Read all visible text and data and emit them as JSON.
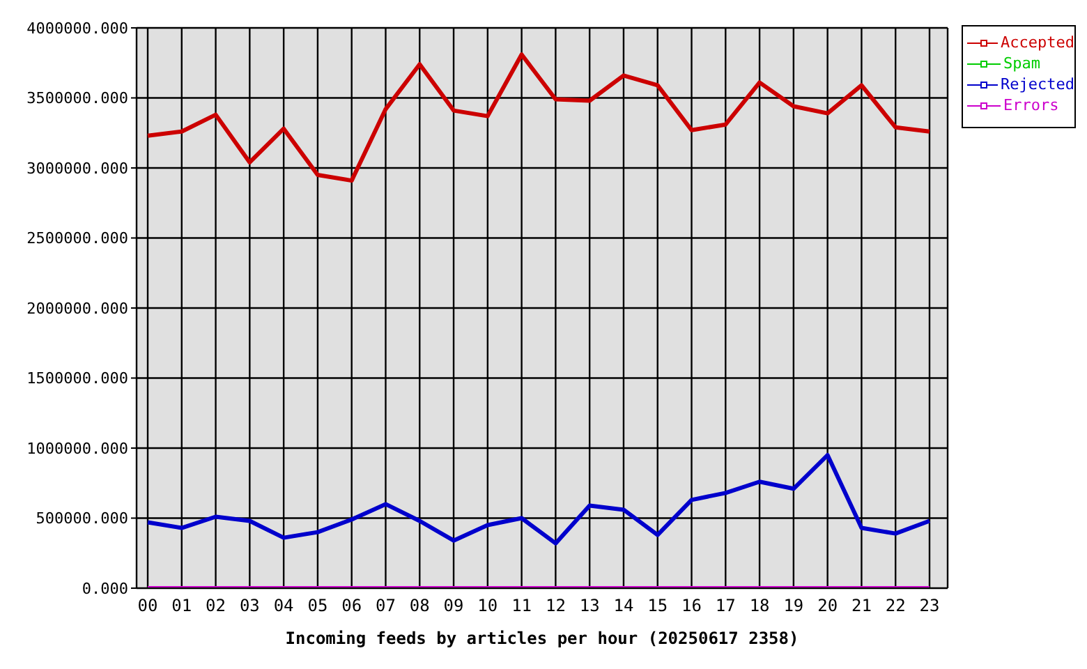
{
  "chart_data": {
    "type": "line",
    "xlabel": "Incoming feeds by articles per hour (20250617 2358)",
    "categories": [
      "00",
      "01",
      "02",
      "03",
      "04",
      "05",
      "06",
      "07",
      "08",
      "09",
      "10",
      "11",
      "12",
      "13",
      "14",
      "15",
      "16",
      "17",
      "18",
      "19",
      "20",
      "21",
      "22",
      "23"
    ],
    "series": [
      {
        "name": "Accepted",
        "color": "#cc0000",
        "values": [
          3230000,
          3260000,
          3380000,
          3040000,
          3280000,
          2950000,
          2910000,
          3420000,
          3740000,
          3410000,
          3370000,
          3810000,
          3490000,
          3480000,
          3660000,
          3590000,
          3270000,
          3310000,
          3610000,
          3440000,
          3390000,
          3590000,
          3290000,
          3260000
        ]
      },
      {
        "name": "Spam",
        "color": "#00cc00",
        "values": [
          null,
          null,
          null,
          null,
          null,
          null,
          null,
          null,
          null,
          null,
          null,
          null,
          null,
          null,
          null,
          null,
          null,
          null,
          null,
          null,
          null,
          null,
          null,
          null
        ]
      },
      {
        "name": "Rejected",
        "color": "#0000cc",
        "values": [
          470000,
          430000,
          510000,
          480000,
          360000,
          400000,
          490000,
          600000,
          480000,
          340000,
          450000,
          500000,
          320000,
          590000,
          560000,
          380000,
          630000,
          680000,
          760000,
          710000,
          950000,
          430000,
          390000,
          480000
        ]
      },
      {
        "name": "Errors",
        "color": "#cc00cc",
        "values": [
          0,
          0,
          0,
          0,
          0,
          0,
          0,
          0,
          0,
          0,
          0,
          0,
          0,
          0,
          0,
          0,
          0,
          0,
          0,
          0,
          0,
          0,
          0,
          0
        ]
      }
    ],
    "ylim": [
      0,
      4000000
    ],
    "yticks": [
      {
        "value": 0,
        "label": "0.000"
      },
      {
        "value": 500000,
        "label": "500000.000"
      },
      {
        "value": 1000000,
        "label": "1000000.000"
      },
      {
        "value": 1500000,
        "label": "1500000.000"
      },
      {
        "value": 2000000,
        "label": "2000000.000"
      },
      {
        "value": 2500000,
        "label": "2500000.000"
      },
      {
        "value": 3000000,
        "label": "3000000.000"
      },
      {
        "value": 3500000,
        "label": "3500000.000"
      },
      {
        "value": 4000000,
        "label": "4000000.000"
      }
    ],
    "grid": true,
    "legend": "top right",
    "marker": "none",
    "line_style": "solid"
  }
}
